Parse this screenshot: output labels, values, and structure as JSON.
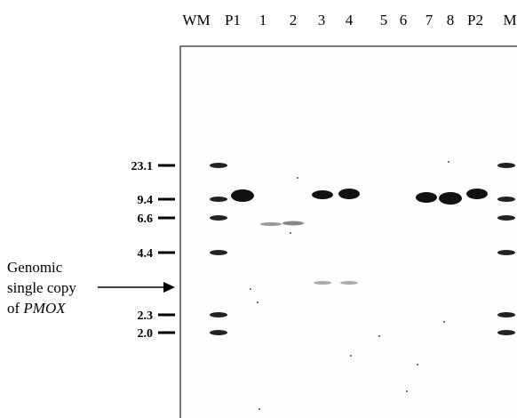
{
  "lanes": [
    "WM",
    "P1",
    "1",
    "2",
    "3",
    "4",
    "5",
    "6",
    "7",
    "8",
    "P2",
    "M"
  ],
  "markers": [
    "23.1",
    "9.4",
    "6.6",
    "4.4",
    "2.3",
    "2.0"
  ],
  "annotation": {
    "lines": [
      "Genomic",
      "single copy",
      "of"
    ],
    "gene": "PMOX"
  }
}
